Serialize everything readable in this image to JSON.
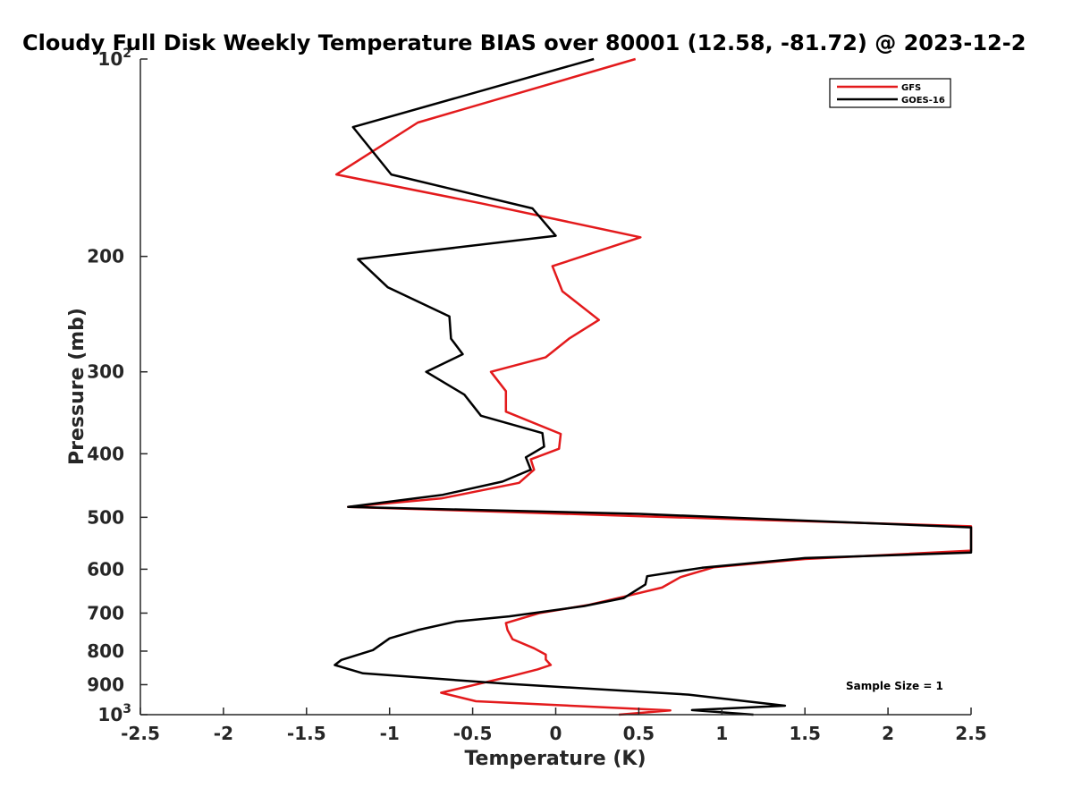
{
  "chart_data": {
    "type": "line",
    "title": "Cloudy Full Disk Weekly Temperature BIAS over 80001 (12.58, -81.72) @ 2023-12-2",
    "xlabel": "Temperature (K)",
    "ylabel": "Pressure (mb)",
    "xlim": [
      -2.5,
      2.5
    ],
    "ylim": [
      100,
      1000
    ],
    "yscale": "log",
    "y_reversed": true,
    "grid": false,
    "legend_position": "top-right",
    "x_ticks": [
      "-2.5",
      "-2",
      "-1.5",
      "-1",
      "-0.5",
      "0",
      "0.5",
      "1",
      "1.5",
      "2",
      "2.5"
    ],
    "x_tick_values": [
      -2.5,
      -2,
      -1.5,
      -1,
      -0.5,
      0,
      0.5,
      1,
      1.5,
      2,
      2.5
    ],
    "y_tick_values": [
      100,
      200,
      300,
      400,
      500,
      600,
      700,
      800,
      900,
      1000
    ],
    "y_tick_labels": [
      {
        "base": "10",
        "exp": "2"
      },
      {
        "base": "200"
      },
      {
        "base": "300"
      },
      {
        "base": "400"
      },
      {
        "base": "500"
      },
      {
        "base": "600"
      },
      {
        "base": "700"
      },
      {
        "base": "800"
      },
      {
        "base": "900"
      },
      {
        "base": "10",
        "exp": "3"
      }
    ],
    "annotation": "Sample Size = 1",
    "series": [
      {
        "name": "GFS",
        "color": "#e31a1c",
        "points": [
          [
            0.48,
            100
          ],
          [
            -0.83,
            125
          ],
          [
            -1.32,
            150
          ],
          [
            -0.45,
            166
          ],
          [
            0.51,
            187
          ],
          [
            -0.02,
            207
          ],
          [
            0.04,
            226
          ],
          [
            0.26,
            250
          ],
          [
            0.08,
            267
          ],
          [
            -0.06,
            285
          ],
          [
            -0.39,
            300
          ],
          [
            -0.3,
            321
          ],
          [
            -0.3,
            345
          ],
          [
            0.03,
            373
          ],
          [
            0.02,
            393
          ],
          [
            -0.15,
            408
          ],
          [
            -0.13,
            423
          ],
          [
            -0.22,
            443
          ],
          [
            -0.69,
            468
          ],
          [
            -1.25,
            482
          ],
          [
            0.5,
            498
          ],
          [
            2.5,
            516
          ],
          [
            2.5,
            562
          ],
          [
            1.5,
            579
          ],
          [
            0.95,
            596
          ],
          [
            0.75,
            617
          ],
          [
            0.64,
            640
          ],
          [
            0.42,
            660
          ],
          [
            0.2,
            680
          ],
          [
            -0.1,
            700
          ],
          [
            -0.3,
            725
          ],
          [
            -0.29,
            743
          ],
          [
            -0.26,
            767
          ],
          [
            -0.13,
            792
          ],
          [
            -0.06,
            810
          ],
          [
            -0.06,
            824
          ],
          [
            -0.03,
            840
          ],
          [
            -0.11,
            853
          ],
          [
            -0.27,
            874
          ],
          [
            -0.69,
            926
          ],
          [
            -0.48,
            954
          ],
          [
            0.69,
            985
          ],
          [
            0.38,
            1000
          ]
        ]
      },
      {
        "name": "GOES-16",
        "color": "#000000",
        "points": [
          [
            0.23,
            100
          ],
          [
            -1.22,
            127
          ],
          [
            -0.99,
            150
          ],
          [
            -0.14,
            169
          ],
          [
            0.0,
            186
          ],
          [
            -1.19,
            202
          ],
          [
            -1.01,
            223
          ],
          [
            -0.64,
            247
          ],
          [
            -0.63,
            267
          ],
          [
            -0.56,
            282
          ],
          [
            -0.78,
            300
          ],
          [
            -0.55,
            325
          ],
          [
            -0.45,
            350
          ],
          [
            -0.08,
            372
          ],
          [
            -0.07,
            390
          ],
          [
            -0.18,
            405
          ],
          [
            -0.15,
            423
          ],
          [
            -0.32,
            441
          ],
          [
            -0.68,
            462
          ],
          [
            -1.25,
            482
          ],
          [
            0.5,
            494
          ],
          [
            2.5,
            518
          ],
          [
            2.5,
            566
          ],
          [
            1.5,
            577
          ],
          [
            0.88,
            597
          ],
          [
            0.55,
            615
          ],
          [
            0.54,
            633
          ],
          [
            0.41,
            664
          ],
          [
            0.17,
            683
          ],
          [
            -0.28,
            708
          ],
          [
            -0.6,
            721
          ],
          [
            -0.83,
            743
          ],
          [
            -1.0,
            765
          ],
          [
            -1.1,
            797
          ],
          [
            -1.29,
            825
          ],
          [
            -1.33,
            840
          ],
          [
            -1.16,
            865
          ],
          [
            -0.3,
            897
          ],
          [
            0.8,
            932
          ],
          [
            1.38,
            969
          ],
          [
            0.82,
            984
          ],
          [
            1.19,
            1000
          ]
        ]
      }
    ]
  }
}
